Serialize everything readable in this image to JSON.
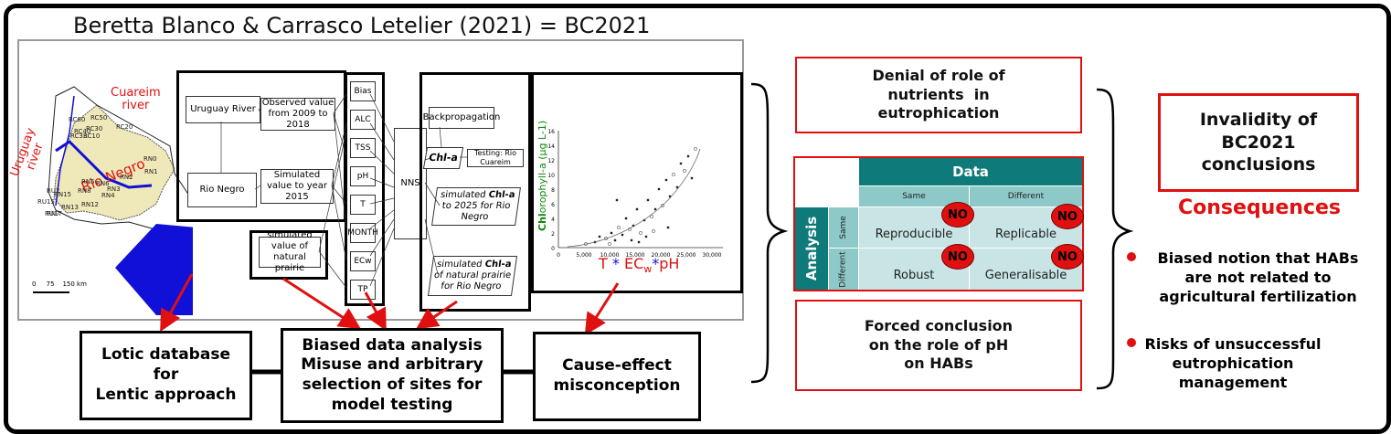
{
  "title": "Beretta Blanco & Carrasco Letelier  (2021) = BC2021",
  "map": {
    "labels": {
      "cuareim": "Cuareim\nriver",
      "uruguay": "Uruguay\nriver",
      "rionegro": "Rio Negro"
    },
    "stations": [
      "RC60",
      "RC50",
      "RC40",
      "RC30",
      "RC20",
      "RC33",
      "RC10",
      "RN0",
      "RN1",
      "RN2",
      "RN3",
      "RN4",
      "RN5",
      "RN6",
      "RN7",
      "RN8",
      "RN12",
      "RN13",
      "RN15",
      "RU2",
      "RU15",
      "RU17"
    ],
    "scale": [
      "0",
      "75",
      "150 km"
    ]
  },
  "flow": {
    "uruguay_river": "Uruguay River",
    "observed": "Observed value from 2009 to 2018",
    "rio_negro": "Rio Negro",
    "simulated_2015": "Simulated value to year 2015",
    "simulated_prairie": "simulated value of natural prairie",
    "variables": [
      "Bias",
      "ALC",
      "TSS",
      "pH",
      "T",
      "MONTH",
      "ECw",
      "TP"
    ],
    "nns": "NNS",
    "backprop": "Backpropagation",
    "chla": "Chl-a",
    "testing": "Testing: Rio Cuareim",
    "sim2025_pre": "simulated ",
    "sim2025_chla": "Chl-a",
    "sim2025_post": "to 2025 for Rio Negro",
    "simprairie_pre": "simulated ",
    "simprairie_chla": "Chl-a",
    "simprairie_post": "of natural prairie for Rio Negro"
  },
  "scatter": {
    "ylabel_pre": "Chl",
    "ylabel_post": "orophyll-a (µg L-1)",
    "yticks": [
      "16",
      "14",
      "12",
      "10",
      "8",
      "6",
      "4",
      "2",
      "0"
    ],
    "xticks": [
      "0",
      "5,000",
      "10,000",
      "15,000",
      "20,000",
      "25,000",
      "30,000"
    ],
    "formula": {
      "t": "T",
      "star": "*",
      "ec": "EC",
      "sub": "w",
      "ph": "pH"
    }
  },
  "bottom": {
    "lotic": "Lotic database\nfor\nLentic approach",
    "biased": "Biased data analysis\nMisuse and arbitrary\nselection of sites for\nmodel testing",
    "cause": "Cause-effect\nmisconception"
  },
  "middle": {
    "denial": "Denial of role of\nnutrients  in\neutrophication",
    "forced": "Forced conclusion\non the role of pH\non HABs"
  },
  "matrix": {
    "data": "Data",
    "analysis": "Analysis",
    "same": "Same",
    "different": "Different",
    "cells": [
      "Reproducible",
      "Replicable",
      "Robust",
      "Generalisable"
    ],
    "no": "NO"
  },
  "right": {
    "invalidity": "Invalidity of\nBC2021\nconclusions",
    "consequences": "Consequences",
    "bullet1": "Biased notion that HABs\nare not related to\nagricultural fertilization",
    "bullet2": "Risks of unsuccessful\neutrophication\nmanagement"
  },
  "colors": {
    "red": "#e01010",
    "teal": "#0f7a7a",
    "teal_light": "#8ec9c9",
    "teal_pale": "#c8e4e4",
    "map_fill": "#efe8b8",
    "map_blue": "#1010d8",
    "green_label": "#0b8a0b"
  }
}
